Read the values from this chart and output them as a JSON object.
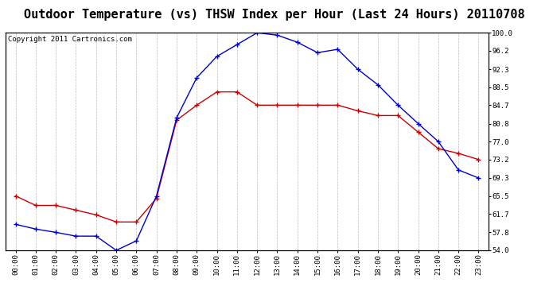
{
  "title": "Outdoor Temperature (vs) THSW Index per Hour (Last 24 Hours) 20110708",
  "copyright": "Copyright 2011 Cartronics.com",
  "hours": [
    "00:00",
    "01:00",
    "02:00",
    "03:00",
    "04:00",
    "05:00",
    "06:00",
    "07:00",
    "08:00",
    "09:00",
    "10:00",
    "11:00",
    "12:00",
    "13:00",
    "14:00",
    "15:00",
    "16:00",
    "17:00",
    "18:00",
    "19:00",
    "20:00",
    "21:00",
    "22:00",
    "23:00"
  ],
  "temp_red": [
    65.5,
    63.5,
    63.5,
    62.5,
    61.5,
    60.0,
    60.0,
    65.0,
    81.5,
    84.7,
    87.5,
    87.5,
    84.7,
    84.7,
    84.7,
    84.7,
    84.7,
    83.5,
    82.5,
    82.5,
    79.0,
    75.5,
    74.5,
    73.2
  ],
  "thsw_blue": [
    59.5,
    58.5,
    57.8,
    57.0,
    57.0,
    54.0,
    56.0,
    65.5,
    82.0,
    90.5,
    95.0,
    97.5,
    100.0,
    99.5,
    98.0,
    95.8,
    96.5,
    92.3,
    89.0,
    84.7,
    80.8,
    77.0,
    71.0,
    69.3
  ],
  "ylim": [
    54.0,
    100.0
  ],
  "yticks": [
    54.0,
    57.8,
    61.7,
    65.5,
    69.3,
    73.2,
    77.0,
    80.8,
    84.7,
    88.5,
    92.3,
    96.2,
    100.0
  ],
  "red_color": "#cc0000",
  "blue_color": "#0000cc",
  "grid_color": "#bbbbbb",
  "bg_color": "#ffffff",
  "title_fontsize": 11,
  "copyright_fontsize": 6.5
}
